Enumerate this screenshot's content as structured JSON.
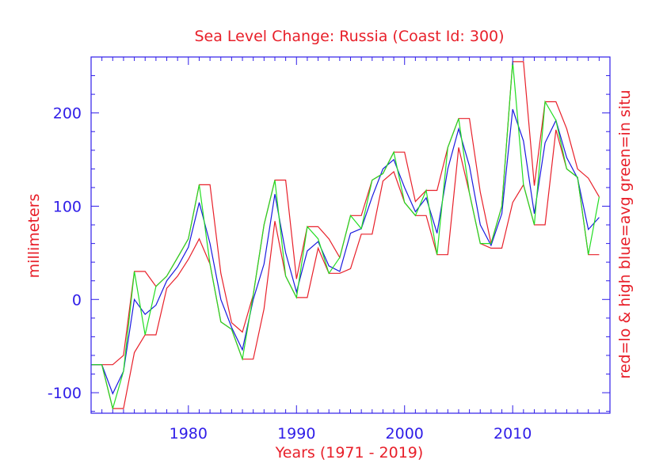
{
  "chart_data": {
    "type": "line",
    "title": "Sea Level Change: Russia (Coast Id: 300)",
    "xlabel": "Years (1971 - 2019)",
    "ylabel": "millimeters",
    "y2label": "red=lo & high  blue=avg  green=in situ",
    "xlim": [
      1971,
      2019
    ],
    "ylim": [
      -122,
      260
    ],
    "x_ticks": [
      1980,
      1990,
      2000,
      2010
    ],
    "x_tick_labels": [
      "1980",
      "1990",
      "2000",
      "2010"
    ],
    "y_ticks": [
      -100,
      0,
      100,
      200
    ],
    "y_tick_labels": [
      "-100",
      "0",
      "100",
      "200"
    ],
    "x": [
      1971,
      1972,
      1973,
      1974,
      1975,
      1976,
      1977,
      1978,
      1979,
      1980,
      1981,
      1982,
      1983,
      1984,
      1985,
      1986,
      1987,
      1988,
      1989,
      1990,
      1991,
      1992,
      1993,
      1994,
      1995,
      1996,
      1997,
      1998,
      1999,
      2000,
      2001,
      2002,
      2003,
      2004,
      2005,
      2006,
      2007,
      2008,
      2009,
      2010,
      2011,
      2012,
      2013,
      2014,
      2015,
      2016,
      2017,
      2018
    ],
    "series": [
      {
        "name": "high",
        "color": "#e8202a",
        "values": [
          -70,
          -70,
          -70,
          -60,
          30,
          30,
          14,
          25,
          45,
          65,
          123,
          123,
          28,
          -25,
          -35,
          5,
          80,
          128,
          128,
          22,
          78,
          78,
          65,
          45,
          90,
          90,
          128,
          135,
          158,
          158,
          105,
          117,
          117,
          163,
          194,
          194,
          115,
          60,
          100,
          255,
          255,
          122,
          212,
          212,
          183,
          140,
          130,
          110
        ]
      },
      {
        "name": "low",
        "color": "#e8202a",
        "values": [
          -70,
          -70,
          -117,
          -117,
          -57,
          -38,
          -38,
          12,
          25,
          43,
          65,
          38,
          -24,
          -32,
          -64,
          -64,
          -10,
          84,
          25,
          2,
          2,
          55,
          28,
          28,
          33,
          70,
          70,
          127,
          137,
          104,
          90,
          90,
          48,
          48,
          163,
          114,
          60,
          55,
          55,
          104,
          123,
          80,
          80,
          182,
          140,
          131,
          48,
          48
        ]
      },
      {
        "name": "avg",
        "color": "#1a1adf",
        "values": [
          -70,
          -70,
          -101,
          -77,
          0,
          -16,
          -6,
          20,
          35,
          56,
          104,
          60,
          0,
          -30,
          -54,
          0,
          38,
          113,
          50,
          8,
          52,
          62,
          36,
          30,
          71,
          76,
          110,
          140,
          150,
          120,
          94,
          109,
          71,
          140,
          183,
          143,
          80,
          58,
          92,
          204,
          170,
          92,
          168,
          192,
          152,
          130,
          75,
          88
        ]
      },
      {
        "name": "in situ",
        "color": "#22dd22",
        "values": [
          -70,
          -70,
          -117,
          -77,
          30,
          -38,
          14,
          25,
          45,
          65,
          123,
          38,
          -24,
          -32,
          -64,
          5,
          80,
          128,
          25,
          2,
          78,
          65,
          28,
          45,
          90,
          76,
          128,
          135,
          158,
          104,
          90,
          117,
          48,
          163,
          194,
          114,
          60,
          60,
          100,
          255,
          123,
          80,
          212,
          192,
          140,
          131,
          48,
          110
        ]
      }
    ]
  }
}
